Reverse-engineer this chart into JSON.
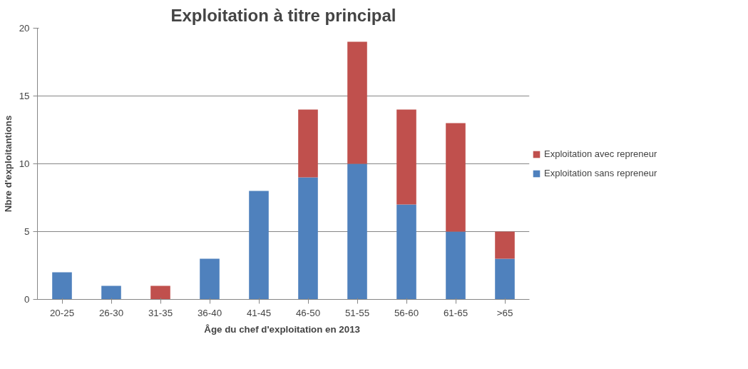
{
  "chart_data": {
    "type": "bar",
    "title": "Exploitation à titre principal",
    "xlabel": "Âge du chef d'exploitation  en 2013",
    "ylabel": "Nbre d'exploitantions",
    "categories": [
      "20-25",
      "26-30",
      "31-35",
      "36-40",
      "41-45",
      "46-50",
      "51-55",
      "56-60",
      "61-65",
      ">65"
    ],
    "series": [
      {
        "name": "Exploitation sans repreneur",
        "color": "#4f81bd",
        "values": [
          2,
          1,
          0,
          3,
          8,
          9,
          10,
          7,
          5,
          3
        ]
      },
      {
        "name": "Exploitation avec repreneur",
        "color": "#c0504d",
        "values": [
          0,
          0,
          1,
          0,
          0,
          5,
          9,
          7,
          8,
          2
        ]
      }
    ],
    "stacked": true,
    "ylim": [
      0,
      20
    ],
    "yticks": [
      0,
      5,
      10,
      15,
      20
    ],
    "grid": "y",
    "legend": "right"
  }
}
